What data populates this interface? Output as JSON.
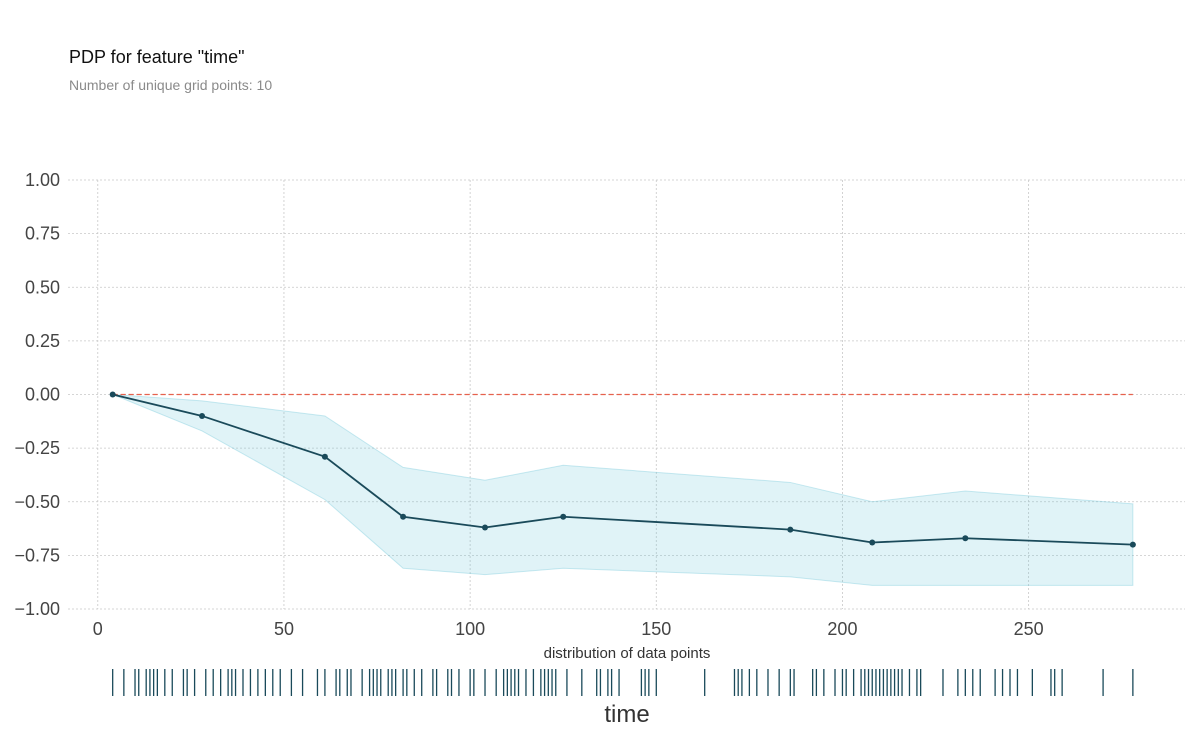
{
  "title": "PDP for feature \"time\"",
  "subtitle": "Number of unique grid points: 10",
  "chart_data": {
    "type": "line",
    "title": "PDP for feature \"time\"",
    "subtitle": "Number of unique grid points: 10",
    "xlabel": "time",
    "rug_label": "distribution of data points",
    "xlim": [
      -8,
      292
    ],
    "ylim": [
      -1.0,
      1.0
    ],
    "xticks": [
      0,
      50,
      100,
      150,
      200,
      250
    ],
    "yticks": [
      1.0,
      0.75,
      0.5,
      0.25,
      0.0,
      -0.25,
      -0.5,
      -0.75,
      -1.0
    ],
    "xtick_labels": [
      "0",
      "50",
      "100",
      "150",
      "200",
      "250"
    ],
    "ytick_labels": [
      "1.00",
      "0.75",
      "0.50",
      "0.25",
      "0.00",
      "−0.25",
      "−0.50",
      "−0.75",
      "−1.00"
    ],
    "grid": true,
    "series": [
      {
        "x": [
          4,
          28,
          61,
          82,
          104,
          125,
          186,
          208,
          233,
          278
        ],
        "y": [
          0.0,
          -0.1,
          -0.29,
          -0.57,
          -0.62,
          -0.57,
          -0.63,
          -0.69,
          -0.67,
          -0.7
        ],
        "upper": [
          0.0,
          -0.03,
          -0.1,
          -0.34,
          -0.4,
          -0.33,
          -0.41,
          -0.5,
          -0.45,
          -0.51
        ],
        "lower": [
          0.0,
          -0.17,
          -0.49,
          -0.81,
          -0.84,
          -0.81,
          -0.85,
          -0.89,
          -0.89,
          -0.89
        ]
      }
    ],
    "reference_line": {
      "y": 0.0,
      "x_range": [
        4,
        278
      ]
    },
    "rug_values": [
      4,
      7,
      10,
      11,
      13,
      14,
      15,
      16,
      18,
      20,
      23,
      24,
      26,
      29,
      31,
      33,
      35,
      36,
      37,
      39,
      41,
      43,
      45,
      47,
      49,
      52,
      55,
      59,
      61,
      64,
      65,
      67,
      68,
      71,
      73,
      74,
      75,
      76,
      78,
      79,
      80,
      82,
      83,
      85,
      87,
      90,
      91,
      94,
      95,
      97,
      100,
      101,
      104,
      107,
      109,
      110,
      111,
      112,
      113,
      115,
      117,
      119,
      120,
      121,
      122,
      123,
      126,
      130,
      134,
      135,
      137,
      138,
      140,
      146,
      147,
      148,
      150,
      163,
      171,
      172,
      173,
      175,
      177,
      180,
      183,
      186,
      187,
      192,
      193,
      195,
      198,
      200,
      201,
      203,
      205,
      206,
      207,
      208,
      209,
      210,
      211,
      212,
      213,
      214,
      215,
      216,
      218,
      220,
      221,
      227,
      231,
      233,
      235,
      237,
      241,
      243,
      245,
      247,
      251,
      256,
      257,
      259,
      270,
      278
    ],
    "colors": {
      "line": "#1a4a5a",
      "band": "#66c2d7",
      "reference": "#e8614d",
      "rug": "#1a4a5a",
      "grid": "#c8c8c8"
    }
  }
}
